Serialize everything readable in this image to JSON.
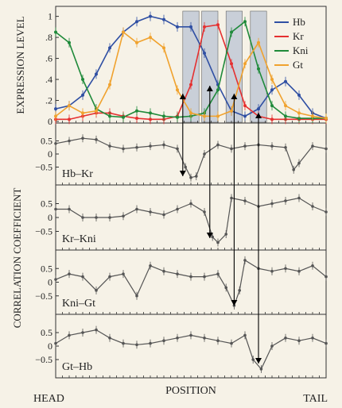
{
  "labels": {
    "expression_ylabel": "EXPRESSION LEVEL",
    "correlation_ylabel": "CORRELATION COEFFICIENT",
    "xlabel": "POSITION",
    "head": "HEAD",
    "tail": "TAIL"
  },
  "colors": {
    "Hb": "#2f4fa3",
    "Kr": "#e53030",
    "Kni": "#1f8a3a",
    "Gt": "#f0a22e",
    "corr": "#555555",
    "band": "#c9cfd8",
    "background": "#f6f2e7"
  },
  "chart_data": [
    {
      "type": "line",
      "ylim": [
        0,
        1.05
      ],
      "yticks": [
        0,
        0.2,
        0.4,
        0.6,
        0.8,
        1
      ],
      "ytick_labels": [
        "0",
        ".2",
        ".4",
        ".6",
        ".8",
        "1"
      ],
      "legend": [
        "Hb",
        "Kr",
        "Kni",
        "Gt"
      ],
      "legend_position": "top-right",
      "shaded_bands": [
        [
          0.47,
          0.53
        ],
        [
          0.54,
          0.6
        ],
        [
          0.63,
          0.69
        ],
        [
          0.72,
          0.78
        ]
      ],
      "series": [
        {
          "name": "Hb",
          "x": [
            0,
            0.05,
            0.1,
            0.15,
            0.2,
            0.25,
            0.3,
            0.35,
            0.4,
            0.45,
            0.5,
            0.55,
            0.6,
            0.65,
            0.7,
            0.75,
            0.8,
            0.85,
            0.9,
            0.95,
            1
          ],
          "y": [
            0.12,
            0.15,
            0.25,
            0.45,
            0.7,
            0.85,
            0.95,
            1.0,
            0.97,
            0.9,
            0.9,
            0.65,
            0.35,
            0.1,
            0.05,
            0.12,
            0.3,
            0.38,
            0.25,
            0.08,
            0.03
          ]
        },
        {
          "name": "Kr",
          "x": [
            0,
            0.05,
            0.1,
            0.15,
            0.2,
            0.25,
            0.3,
            0.35,
            0.4,
            0.45,
            0.5,
            0.55,
            0.6,
            0.65,
            0.7,
            0.75,
            0.8,
            0.85,
            0.9,
            0.95,
            1
          ],
          "y": [
            0.02,
            0.02,
            0.05,
            0.08,
            0.08,
            0.05,
            0.03,
            0.02,
            0.02,
            0.05,
            0.35,
            0.9,
            0.92,
            0.55,
            0.15,
            0.05,
            0.02,
            0.02,
            0.02,
            0.02,
            0.02
          ]
        },
        {
          "name": "Kni",
          "x": [
            0,
            0.05,
            0.1,
            0.15,
            0.2,
            0.25,
            0.3,
            0.35,
            0.4,
            0.45,
            0.5,
            0.55,
            0.6,
            0.65,
            0.7,
            0.75,
            0.8,
            0.85,
            0.9,
            0.95,
            1
          ],
          "y": [
            0.85,
            0.75,
            0.4,
            0.12,
            0.05,
            0.04,
            0.1,
            0.08,
            0.05,
            0.04,
            0.05,
            0.08,
            0.3,
            0.85,
            0.95,
            0.5,
            0.15,
            0.05,
            0.03,
            0.03,
            0.03
          ]
        },
        {
          "name": "Gt",
          "x": [
            0,
            0.05,
            0.1,
            0.15,
            0.2,
            0.25,
            0.3,
            0.35,
            0.4,
            0.45,
            0.5,
            0.55,
            0.6,
            0.65,
            0.7,
            0.75,
            0.8,
            0.85,
            0.9,
            0.95,
            1
          ],
          "y": [
            0.05,
            0.15,
            0.08,
            0.1,
            0.35,
            0.85,
            0.75,
            0.8,
            0.7,
            0.3,
            0.08,
            0.05,
            0.05,
            0.1,
            0.55,
            0.75,
            0.4,
            0.15,
            0.08,
            0.05,
            0.03
          ]
        }
      ]
    },
    {
      "type": "scatter",
      "label": "Hb–Kr",
      "ylim": [
        -1,
        1
      ],
      "yticks": [
        0.5,
        0,
        -0.5
      ],
      "ytick_labels": [
        "0.5",
        "0",
        "−0.5"
      ],
      "x": [
        0,
        0.05,
        0.1,
        0.15,
        0.2,
        0.25,
        0.3,
        0.35,
        0.4,
        0.45,
        0.48,
        0.5,
        0.52,
        0.55,
        0.6,
        0.65,
        0.7,
        0.75,
        0.8,
        0.85,
        0.88,
        0.9,
        0.95,
        1
      ],
      "y": [
        0.4,
        0.5,
        0.6,
        0.55,
        0.3,
        0.2,
        0.25,
        0.3,
        0.35,
        0.2,
        -0.5,
        -0.9,
        -0.85,
        0.0,
        0.35,
        0.2,
        0.3,
        0.35,
        0.3,
        0.25,
        -0.6,
        -0.35,
        0.3,
        0.2
      ]
    },
    {
      "type": "scatter",
      "label": "Kr–Kni",
      "ylim": [
        -1,
        1
      ],
      "yticks": [
        0.5,
        0,
        -0.5
      ],
      "ytick_labels": [
        "0.5",
        "0",
        "−0.5"
      ],
      "x": [
        0,
        0.05,
        0.1,
        0.15,
        0.2,
        0.25,
        0.3,
        0.35,
        0.4,
        0.45,
        0.5,
        0.55,
        0.58,
        0.6,
        0.63,
        0.65,
        0.7,
        0.75,
        0.8,
        0.85,
        0.9,
        0.95,
        1
      ],
      "y": [
        0.3,
        0.3,
        0.0,
        0.0,
        0.0,
        0.05,
        0.3,
        0.2,
        0.1,
        0.3,
        0.5,
        0.2,
        -0.7,
        -0.9,
        -0.6,
        0.7,
        0.6,
        0.4,
        0.5,
        0.6,
        0.7,
        0.4,
        0.2
      ]
    },
    {
      "type": "scatter",
      "label": "Kni–Gt",
      "ylim": [
        -1,
        1
      ],
      "yticks": [
        0.5,
        0,
        -0.5
      ],
      "ytick_labels": [
        "0.5",
        "0",
        "−0.5"
      ],
      "x": [
        0,
        0.05,
        0.1,
        0.15,
        0.2,
        0.25,
        0.3,
        0.35,
        0.4,
        0.45,
        0.5,
        0.55,
        0.6,
        0.63,
        0.66,
        0.68,
        0.7,
        0.75,
        0.8,
        0.85,
        0.9,
        0.95,
        1
      ],
      "y": [
        0.1,
        0.3,
        0.2,
        -0.3,
        0.2,
        0.3,
        -0.5,
        0.6,
        0.4,
        0.3,
        0.2,
        0.2,
        0.3,
        -0.2,
        -0.85,
        -0.3,
        0.8,
        0.5,
        0.4,
        0.5,
        0.4,
        0.6,
        0.2
      ]
    },
    {
      "type": "scatter",
      "label": "Gt–Hb",
      "ylim": [
        -1,
        1
      ],
      "yticks": [
        0.5,
        0,
        -0.5
      ],
      "ytick_labels": [
        "0.5",
        "0",
        "−0.5"
      ],
      "x": [
        0,
        0.05,
        0.1,
        0.15,
        0.2,
        0.25,
        0.3,
        0.35,
        0.4,
        0.45,
        0.5,
        0.55,
        0.6,
        0.65,
        0.7,
        0.73,
        0.76,
        0.8,
        0.85,
        0.9,
        0.95,
        1
      ],
      "y": [
        0.1,
        0.4,
        0.5,
        0.6,
        0.3,
        0.1,
        0.05,
        0.1,
        0.2,
        0.3,
        0.4,
        0.3,
        0.2,
        0.1,
        0.4,
        -0.5,
        -0.85,
        0.0,
        0.3,
        0.2,
        0.3,
        0.1
      ]
    }
  ]
}
